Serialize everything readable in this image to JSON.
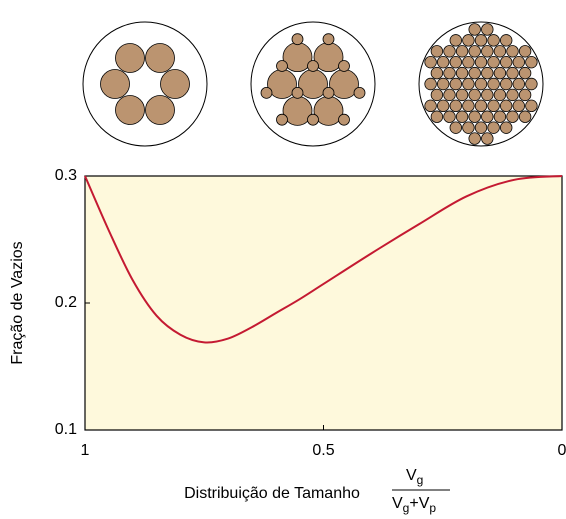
{
  "chart_data": {
    "type": "line",
    "x_label": "Distribuição de Tamanho",
    "x_label_fraction": {
      "numerator": {
        "base": "V",
        "sub": "g"
      },
      "denominator": [
        {
          "base": "V",
          "sub": "g"
        },
        {
          "base": "+V",
          "sub": "p"
        }
      ]
    },
    "y_label": "Fração de Vazios",
    "x": [
      1,
      0.95,
      0.9,
      0.85,
      0.8,
      0.75,
      0.7,
      0.65,
      0.6,
      0.55,
      0.5,
      0.4,
      0.3,
      0.2,
      0.1,
      0
    ],
    "series": [
      {
        "color": "#c41a32",
        "values": [
          0.3,
          0.257,
          0.218,
          0.19,
          0.175,
          0.169,
          0.172,
          0.181,
          0.192,
          0.203,
          0.215,
          0.239,
          0.262,
          0.284,
          0.297,
          0.3
        ]
      }
    ],
    "xlim": [
      1,
      0
    ],
    "xticks": [
      1,
      0.5,
      0
    ],
    "ylim": [
      0.1,
      0.3
    ],
    "yticks": [
      0.1,
      0.2,
      0.3
    ],
    "background": "#fef9dc"
  }
}
